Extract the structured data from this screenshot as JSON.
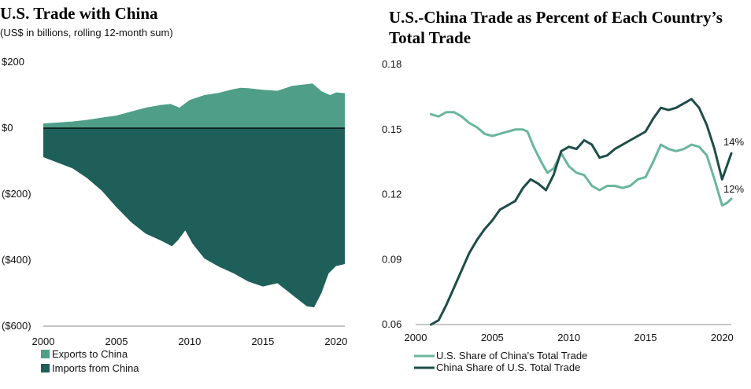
{
  "colors": {
    "exports": "#4f9e88",
    "imports": "#1f5f59",
    "us_share_line": "#6ab59e",
    "china_share_line": "#1e4d49"
  },
  "chart_data": [
    {
      "type": "area",
      "title": "U.S. Trade with China",
      "subtitle": "(US$ in billions, rolling 12-month sum)",
      "xlim": [
        2000,
        2020.6
      ],
      "ylim": [
        -600,
        200
      ],
      "x_ticks": [
        2000,
        2005,
        2010,
        2015,
        2020
      ],
      "x_tick_labels": [
        "2000",
        "2005",
        "2010",
        "2015",
        "2020"
      ],
      "y_ticks": [
        200,
        0,
        -200,
        -400,
        -600
      ],
      "y_tick_labels": [
        "$200",
        "$0",
        "($200)",
        "($400)",
        "($600)"
      ],
      "legend": [
        "Exports to China",
        "Imports from China"
      ],
      "legend_placement": "bottom-left",
      "series": [
        {
          "name": "Exports to China",
          "points": [
            [
              2000,
              14
            ],
            [
              2001,
              17
            ],
            [
              2002,
              20
            ],
            [
              2003,
              25
            ],
            [
              2004,
              32
            ],
            [
              2005,
              38
            ],
            [
              2006,
              50
            ],
            [
              2007,
              62
            ],
            [
              2008,
              70
            ],
            [
              2008.7,
              73
            ],
            [
              2009.3,
              62
            ],
            [
              2010,
              85
            ],
            [
              2011,
              100
            ],
            [
              2012,
              107
            ],
            [
              2013,
              118
            ],
            [
              2013.5,
              122
            ],
            [
              2014,
              121
            ],
            [
              2015,
              116
            ],
            [
              2016,
              113
            ],
            [
              2017,
              128
            ],
            [
              2018,
              133
            ],
            [
              2018.4,
              135
            ],
            [
              2019,
              112
            ],
            [
              2019.6,
              100
            ],
            [
              2020,
              108
            ],
            [
              2020.6,
              106
            ]
          ]
        },
        {
          "name": "Imports from China",
          "points": [
            [
              2000,
              -88
            ],
            [
              2001,
              -105
            ],
            [
              2002,
              -122
            ],
            [
              2003,
              -152
            ],
            [
              2004,
              -190
            ],
            [
              2005,
              -240
            ],
            [
              2006,
              -285
            ],
            [
              2007,
              -320
            ],
            [
              2008,
              -340
            ],
            [
              2008.8,
              -358
            ],
            [
              2009.2,
              -340
            ],
            [
              2009.7,
              -310
            ],
            [
              2010.2,
              -350
            ],
            [
              2011,
              -395
            ],
            [
              2012,
              -420
            ],
            [
              2013,
              -440
            ],
            [
              2014,
              -465
            ],
            [
              2015,
              -480
            ],
            [
              2016,
              -470
            ],
            [
              2017,
              -505
            ],
            [
              2018,
              -540
            ],
            [
              2018.5,
              -543
            ],
            [
              2019,
              -500
            ],
            [
              2019.5,
              -440
            ],
            [
              2020,
              -418
            ],
            [
              2020.6,
              -412
            ]
          ]
        }
      ]
    },
    {
      "type": "line",
      "title": "U.S.-China Trade as Percent of Each Country’s Total Trade",
      "xlim": [
        2000,
        2020.6
      ],
      "ylim": [
        0.06,
        0.18
      ],
      "x_ticks": [
        2000,
        2005,
        2010,
        2015,
        2020
      ],
      "x_tick_labels": [
        "2000",
        "2005",
        "2010",
        "2015",
        "2020"
      ],
      "y_ticks": [
        0.18,
        0.15,
        0.12,
        0.09,
        0.06
      ],
      "y_tick_labels": [
        "0.18",
        "0.15",
        "0.12",
        "0.09",
        "0.06"
      ],
      "grid": false,
      "legend": [
        "U.S. Share of China's Total Trade",
        "China Share of U.S. Total Trade"
      ],
      "legend_placement": "bottom",
      "series": [
        {
          "name": "U.S. Share of China's Total Trade",
          "end_label": "12%",
          "points": [
            [
              2001,
              0.157
            ],
            [
              2001.5,
              0.156
            ],
            [
              2002,
              0.158
            ],
            [
              2002.5,
              0.158
            ],
            [
              2003,
              0.156
            ],
            [
              2003.5,
              0.153
            ],
            [
              2004,
              0.151
            ],
            [
              2004.5,
              0.148
            ],
            [
              2005,
              0.147
            ],
            [
              2005.5,
              0.148
            ],
            [
              2006,
              0.149
            ],
            [
              2006.5,
              0.15
            ],
            [
              2007,
              0.15
            ],
            [
              2007.3,
              0.149
            ],
            [
              2007.7,
              0.142
            ],
            [
              2008.2,
              0.135
            ],
            [
              2008.6,
              0.13
            ],
            [
              2009,
              0.132
            ],
            [
              2009.5,
              0.139
            ],
            [
              2010,
              0.133
            ],
            [
              2010.5,
              0.13
            ],
            [
              2011,
              0.129
            ],
            [
              2011.5,
              0.124
            ],
            [
              2012,
              0.122
            ],
            [
              2012.5,
              0.124
            ],
            [
              2013,
              0.124
            ],
            [
              2013.5,
              0.123
            ],
            [
              2014,
              0.124
            ],
            [
              2014.5,
              0.127
            ],
            [
              2015,
              0.128
            ],
            [
              2015.5,
              0.135
            ],
            [
              2016,
              0.143
            ],
            [
              2016.5,
              0.141
            ],
            [
              2017,
              0.14
            ],
            [
              2017.5,
              0.141
            ],
            [
              2018,
              0.143
            ],
            [
              2018.5,
              0.142
            ],
            [
              2019,
              0.138
            ],
            [
              2019.5,
              0.127
            ],
            [
              2020,
              0.115
            ],
            [
              2020.3,
              0.116
            ],
            [
              2020.6,
              0.118
            ]
          ]
        },
        {
          "name": "China Share of U.S. Total Trade",
          "end_label": "14%",
          "points": [
            [
              2001,
              0.06
            ],
            [
              2001.5,
              0.062
            ],
            [
              2002,
              0.069
            ],
            [
              2002.5,
              0.077
            ],
            [
              2003,
              0.085
            ],
            [
              2003.5,
              0.093
            ],
            [
              2004,
              0.099
            ],
            [
              2004.5,
              0.104
            ],
            [
              2005,
              0.108
            ],
            [
              2005.5,
              0.113
            ],
            [
              2006,
              0.115
            ],
            [
              2006.5,
              0.117
            ],
            [
              2007,
              0.123
            ],
            [
              2007.5,
              0.127
            ],
            [
              2008,
              0.125
            ],
            [
              2008.5,
              0.122
            ],
            [
              2009,
              0.129
            ],
            [
              2009.5,
              0.14
            ],
            [
              2010,
              0.142
            ],
            [
              2010.5,
              0.141
            ],
            [
              2011,
              0.145
            ],
            [
              2011.5,
              0.143
            ],
            [
              2012,
              0.137
            ],
            [
              2012.5,
              0.138
            ],
            [
              2013,
              0.141
            ],
            [
              2013.5,
              0.143
            ],
            [
              2014,
              0.145
            ],
            [
              2014.5,
              0.147
            ],
            [
              2015,
              0.149
            ],
            [
              2015.5,
              0.155
            ],
            [
              2016,
              0.16
            ],
            [
              2016.5,
              0.159
            ],
            [
              2017,
              0.16
            ],
            [
              2017.5,
              0.162
            ],
            [
              2018,
              0.164
            ],
            [
              2018.5,
              0.16
            ],
            [
              2019,
              0.152
            ],
            [
              2019.5,
              0.141
            ],
            [
              2020,
              0.127
            ],
            [
              2020.3,
              0.133
            ],
            [
              2020.6,
              0.139
            ]
          ]
        }
      ]
    }
  ]
}
